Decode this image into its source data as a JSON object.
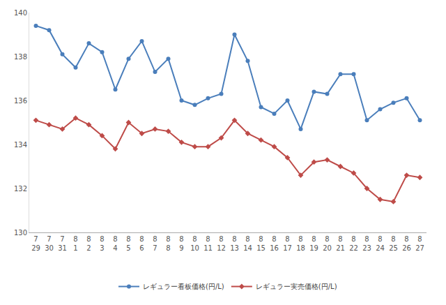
{
  "chart_data": {
    "type": "line",
    "categories": [
      "7\n29",
      "7\n30",
      "7\n31",
      "8\n1",
      "8\n2",
      "8\n3",
      "8\n4",
      "8\n5",
      "8\n6",
      "8\n7",
      "8\n8",
      "8\n9",
      "8\n10",
      "8\n11",
      "8\n12",
      "8\n13",
      "8\n14",
      "8\n15",
      "8\n16",
      "8\n17",
      "8\n18",
      "8\n19",
      "8\n20",
      "8\n21",
      "8\n22",
      "8\n23",
      "8\n24",
      "8\n25",
      "8\n26",
      "8\n27"
    ],
    "series": [
      {
        "name": "レギュラー看板価格(円/L)",
        "color": "#4a7ebb",
        "marker": "circle",
        "values": [
          139.4,
          139.2,
          138.1,
          137.5,
          138.6,
          138.2,
          136.5,
          137.9,
          138.7,
          137.3,
          137.9,
          136.0,
          135.8,
          136.1,
          136.3,
          139.0,
          137.8,
          135.7,
          135.4,
          136.0,
          134.7,
          136.4,
          136.3,
          137.2,
          137.2,
          135.1,
          135.6,
          135.9,
          136.1,
          135.1
        ]
      },
      {
        "name": "レギュラー実売価格(円/L)",
        "color": "#be4b48",
        "marker": "diamond",
        "values": [
          135.1,
          134.9,
          134.7,
          135.2,
          134.9,
          134.4,
          133.8,
          135.0,
          134.5,
          134.7,
          134.6,
          134.1,
          133.9,
          133.9,
          134.3,
          135.1,
          134.5,
          134.2,
          133.9,
          133.4,
          132.6,
          133.2,
          133.3,
          133.0,
          132.7,
          132.0,
          131.5,
          131.4,
          132.6,
          132.5
        ]
      }
    ],
    "ylim": [
      130,
      140
    ],
    "yticks": [
      130,
      132,
      134,
      136,
      138,
      140
    ],
    "grid": false,
    "legend": "bottom"
  }
}
